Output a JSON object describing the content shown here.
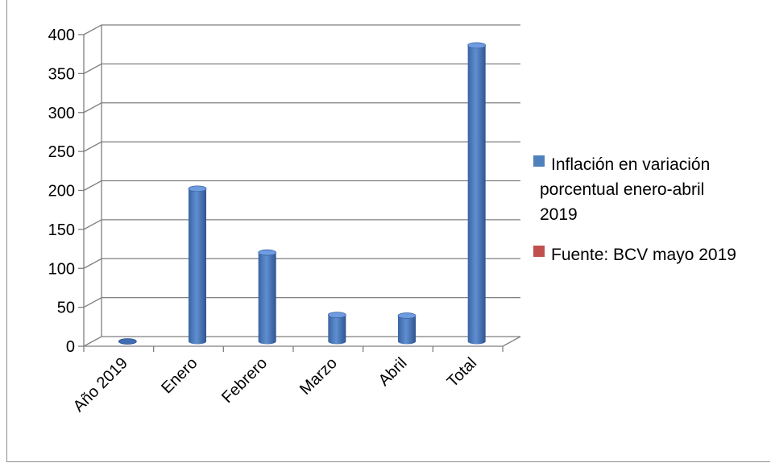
{
  "chart_data": {
    "type": "bar",
    "categories": [
      "Año 2019",
      "Enero",
      "Febrero",
      "Marzo",
      "Abril",
      "Total"
    ],
    "series": [
      {
        "name": "Inflación en variación porcentual enero-abril 2019",
        "color": "#4f81bd",
        "values": [
          0,
          196,
          114,
          34,
          33,
          380
        ]
      },
      {
        "name": "Fuente: BCV mayo 2019",
        "color": "#c0504d",
        "values": [
          0,
          0,
          0,
          0,
          0,
          0
        ]
      }
    ],
    "ylim": [
      0,
      400
    ],
    "yticks": [
      0,
      50,
      100,
      150,
      200,
      250,
      300,
      350,
      400
    ],
    "grid": true,
    "legend": "right",
    "legend_lines": [
      [
        "Inflación en variación",
        "porcentual enero-abril",
        "2019"
      ],
      [
        "Fuente: BCV mayo 2019"
      ]
    ]
  }
}
